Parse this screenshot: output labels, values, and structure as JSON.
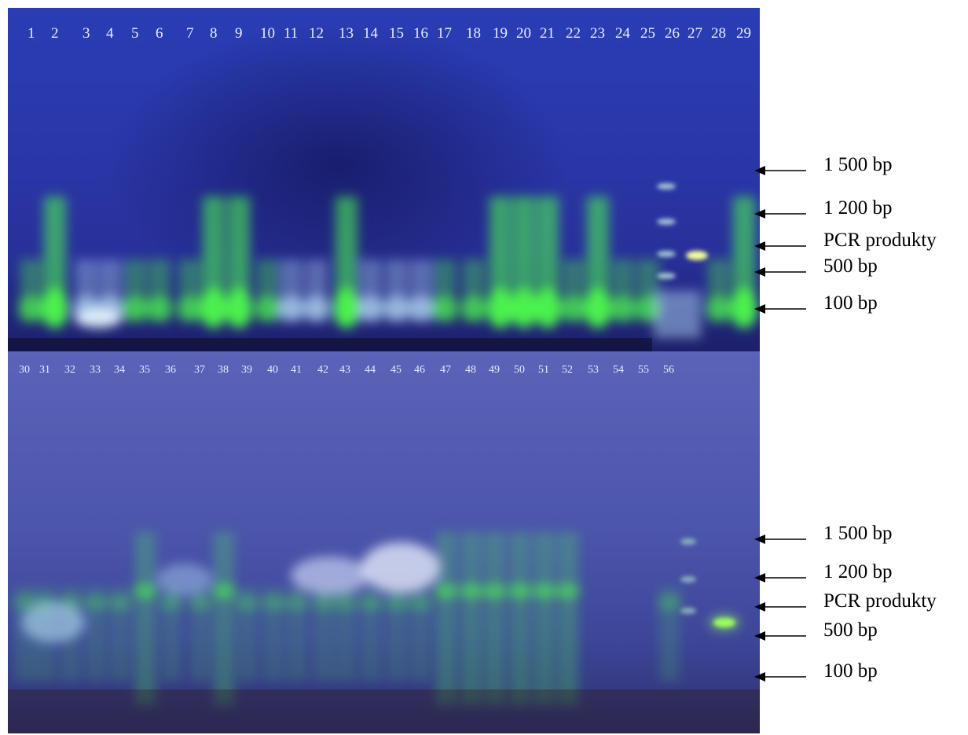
{
  "top_gel": {
    "lanes": [
      "1",
      "2",
      "3",
      "4",
      "5",
      "6",
      "7",
      "8",
      "9",
      "10",
      "11",
      "12",
      "13",
      "14",
      "15",
      "16",
      "17",
      "18",
      "19",
      "20",
      "21",
      "22",
      "23",
      "24",
      "25",
      "26",
      "27",
      "28",
      "29"
    ],
    "markers": [
      "1 500 bp",
      "1 200 bp",
      "PCR produkty",
      "500 bp",
      "100 bp"
    ]
  },
  "bottom_gel": {
    "lanes": [
      "30",
      "31",
      "32",
      "33",
      "34",
      "35",
      "36",
      "37",
      "38",
      "39",
      "40",
      "41",
      "42",
      "43",
      "44",
      "45",
      "46",
      "47",
      "48",
      "49",
      "50",
      "51",
      "52",
      "53",
      "54",
      "55",
      "56"
    ],
    "markers": [
      "1 500 bp",
      "1 200 bp",
      "PCR produkty",
      "500 bp",
      "100 bp"
    ]
  },
  "colors": {
    "gel_top": "#2a3db5",
    "gel_bottom": "#4c56ac",
    "band_green": "#4dff4a",
    "smear_cyan": "#bfe8ff",
    "pcr_product": "#f4ff9a",
    "arrow": "#000000"
  }
}
